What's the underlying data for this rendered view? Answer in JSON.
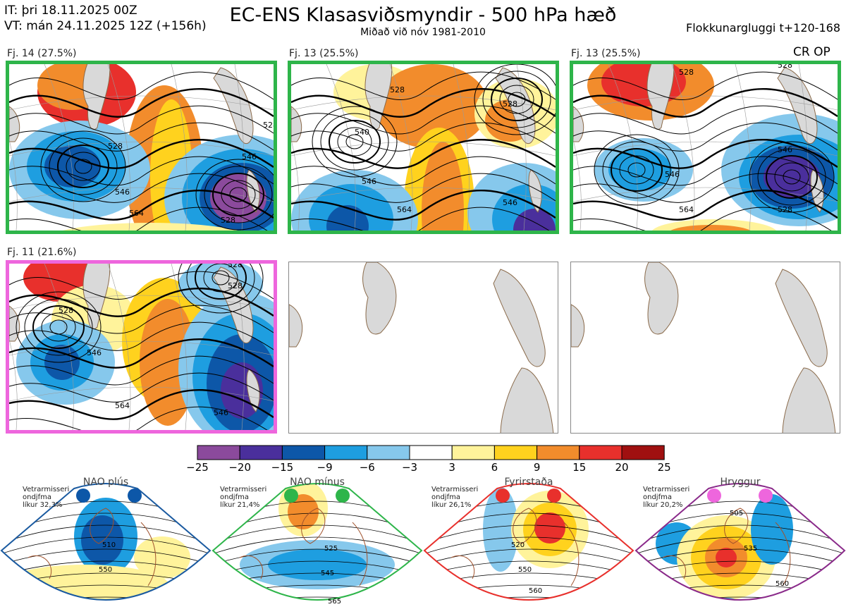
{
  "header": {
    "issue_time": "IT: þri 18.11.2025 00Z",
    "valid_time": "VT: mán 24.11.2025 12Z  (+156h)",
    "title": "EC-ENS Klasasviðsmyndir - 500 hPa hæð",
    "subtitle": "Miðað við nóv 1981-2010",
    "window": "Flokkunargluggi t+120-168"
  },
  "panels": [
    {
      "label": "Fj. 14 (27.5%)",
      "border": "#2eb54a",
      "contours": [
        "528",
        "546",
        "564",
        "546",
        "528",
        "528"
      ]
    },
    {
      "label": "Fj. 13 (25.5%)",
      "border": "#2eb54a",
      "contours": [
        "528",
        "546",
        "564",
        "546",
        "528",
        "540"
      ]
    },
    {
      "label": "Fj. 13 (25.5%)",
      "border": "#2eb54a",
      "contours": [
        "528",
        "546",
        "564",
        "546",
        "528",
        "528"
      ],
      "tag": "CR OP"
    },
    {
      "label": "Fj. 11 (21.6%)",
      "border": "#ee66dd",
      "contours": [
        "528",
        "546",
        "564",
        "546",
        "528",
        "528"
      ]
    }
  ],
  "colorbar": {
    "colors": [
      "#8b4a9c",
      "#4a2f9c",
      "#0d57a8",
      "#1e9ee0",
      "#86c8ec",
      "#ffffff",
      "#fff39b",
      "#ffd21e",
      "#f28c2c",
      "#e8302c",
      "#a01010"
    ],
    "labels": [
      "−25",
      "−20",
      "−15",
      "−9",
      "−6",
      "−3",
      "3",
      "6",
      "9",
      "15",
      "20",
      "25"
    ]
  },
  "regimes": [
    {
      "title": "NAO plús",
      "note_lines": [
        "Vetrarmisseri",
        "ondjfma",
        "líkur 32,3%"
      ],
      "dot_color": "#0d57a8",
      "border": "#1a5aa0",
      "contours": [
        "510",
        "550"
      ]
    },
    {
      "title": "NAO mínus",
      "note_lines": [
        "Vetrarmisseri",
        "ondjfma",
        "líkur 21,4%"
      ],
      "dot_color": "#2eb54a",
      "border": "#2eb54a",
      "contours": [
        "525",
        "545",
        "565"
      ]
    },
    {
      "title": "Fyrirstaða",
      "note_lines": [
        "Vetrarmisseri",
        "ondjfma",
        "líkur 26,1%"
      ],
      "dot_color": "#e8302c",
      "border": "#e8302c",
      "contours": [
        "520",
        "550",
        "560"
      ]
    },
    {
      "title": "Hryggur",
      "note_lines": [
        "Vetrarmisseri",
        "ondjfma",
        "líkur 20,2%"
      ],
      "dot_color": "#ee66dd",
      "border": "#8a2a8a",
      "contours": [
        "505",
        "535",
        "560"
      ]
    }
  ]
}
